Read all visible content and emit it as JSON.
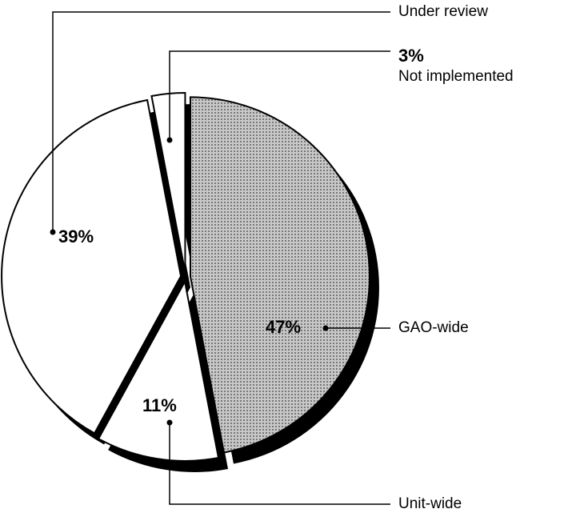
{
  "chart_data": {
    "type": "pie",
    "categories": [
      "GAO-wide",
      "Unit-wide",
      "Under review",
      "Not implemented"
    ],
    "values": [
      47,
      11,
      39,
      3
    ],
    "value_labels": [
      "47%",
      "11%",
      "39%",
      "3%"
    ],
    "colors": [
      "#b4b4b4",
      "#ffffff",
      "#ffffff",
      "#ffffff"
    ]
  }
}
